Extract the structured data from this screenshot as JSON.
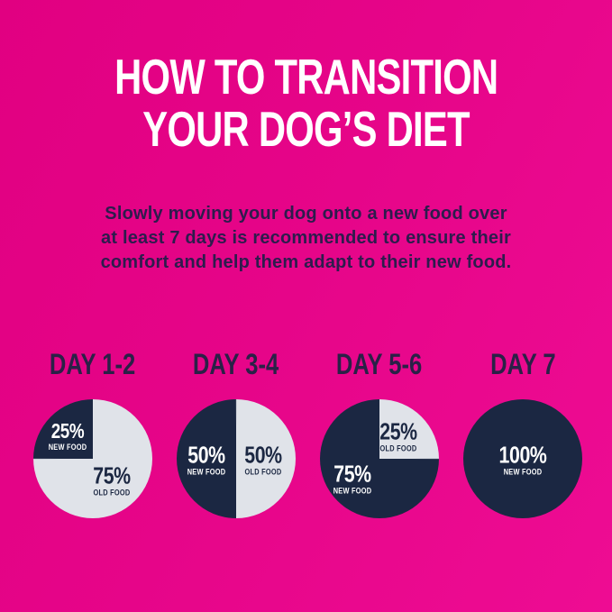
{
  "title": {
    "line1": "HOW TO TRANSITION",
    "line2": "YOUR DOG’S DIET"
  },
  "subtitle": {
    "lines": [
      "Slowly moving your dog onto a new food over",
      "at least 7 days is recommended to ensure their",
      "comfort and help them adapt to their new food."
    ]
  },
  "pies": [
    {
      "heading": "DAY 1-2",
      "slices": [
        {
          "pct": "25%",
          "label": "NEW FOOD"
        },
        {
          "pct": "75%",
          "label": "OLD FOOD"
        }
      ]
    },
    {
      "heading": "DAY 3-4",
      "slices": [
        {
          "pct": "50%",
          "label": "NEW FOOD"
        },
        {
          "pct": "50%",
          "label": "OLD FOOD"
        }
      ]
    },
    {
      "heading": "DAY 5-6",
      "slices": [
        {
          "pct": "75%",
          "label": "NEW FOOD"
        },
        {
          "pct": "25%",
          "label": "OLD FOOD"
        }
      ]
    },
    {
      "heading": "DAY 7",
      "slices": [
        {
          "pct": "100%",
          "label": "NEW FOOD"
        }
      ]
    }
  ],
  "chart_data": [
    {
      "type": "pie",
      "title": "DAY 1-2",
      "labels": [
        "NEW FOOD",
        "OLD FOOD"
      ],
      "values": [
        25,
        75
      ],
      "colors": [
        "#1b2742",
        "#e0e3e9"
      ],
      "layout": "new-food wedge top-left quadrant"
    },
    {
      "type": "pie",
      "title": "DAY 3-4",
      "labels": [
        "NEW FOOD",
        "OLD FOOD"
      ],
      "values": [
        50,
        50
      ],
      "colors": [
        "#1b2742",
        "#e0e3e9"
      ],
      "layout": "new-food wedge left half"
    },
    {
      "type": "pie",
      "title": "DAY 5-6",
      "labels": [
        "NEW FOOD",
        "OLD FOOD"
      ],
      "values": [
        75,
        25
      ],
      "colors": [
        "#1b2742",
        "#e0e3e9"
      ],
      "layout": "old-food wedge top-right quadrant"
    },
    {
      "type": "pie",
      "title": "DAY 7",
      "labels": [
        "NEW FOOD"
      ],
      "values": [
        100
      ],
      "colors": [
        "#1b2742"
      ],
      "layout": "full circle"
    }
  ],
  "colors": {
    "background_magenta_start": "#e10081",
    "background_magenta_end": "#ee0c93",
    "pie_navy": "#1b2742",
    "pie_light_gray": "#e0e3e9",
    "heading_navy": "#2a2147",
    "subtitle_indigo": "#2d1c4d",
    "title_white": "#ffffff"
  }
}
